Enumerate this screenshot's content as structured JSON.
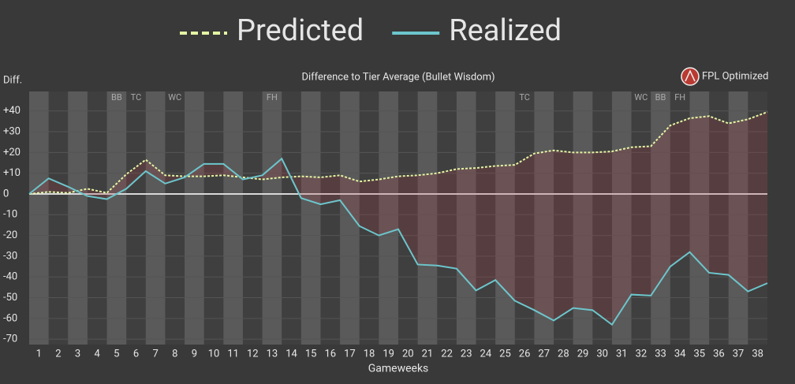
{
  "chart_data": {
    "type": "line",
    "title": "Difference to Tier Average (Bullet Wisdom)",
    "y_label": "Diff.",
    "x_label": "Gameweeks",
    "brand": "FPL Optimized",
    "x": [
      0,
      1,
      2,
      3,
      4,
      5,
      6,
      7,
      8,
      9,
      10,
      11,
      12,
      13,
      14,
      15,
      16,
      17,
      18,
      19,
      20,
      21,
      22,
      23,
      24,
      25,
      26,
      27,
      28,
      29,
      30,
      31,
      32,
      33,
      34,
      35,
      36,
      37,
      38
    ],
    "xlim": [
      0,
      38
    ],
    "xticks": [
      {
        "value": 0.5,
        "label": "1"
      },
      {
        "value": 1.5,
        "label": "2"
      },
      {
        "value": 2.5,
        "label": "3"
      },
      {
        "value": 3.5,
        "label": "4"
      },
      {
        "value": 4.5,
        "label": "5"
      },
      {
        "value": 5.5,
        "label": "6"
      },
      {
        "value": 6.5,
        "label": "7"
      },
      {
        "value": 7.5,
        "label": "8"
      },
      {
        "value": 8.5,
        "label": "9"
      },
      {
        "value": 9.5,
        "label": "10"
      },
      {
        "value": 10.5,
        "label": "11"
      },
      {
        "value": 11.5,
        "label": "12"
      },
      {
        "value": 12.5,
        "label": "13"
      },
      {
        "value": 13.5,
        "label": "14"
      },
      {
        "value": 14.5,
        "label": "15"
      },
      {
        "value": 15.5,
        "label": "16"
      },
      {
        "value": 16.5,
        "label": "17"
      },
      {
        "value": 17.5,
        "label": "18"
      },
      {
        "value": 18.5,
        "label": "19"
      },
      {
        "value": 19.5,
        "label": "20"
      },
      {
        "value": 20.5,
        "label": "21"
      },
      {
        "value": 21.5,
        "label": "22"
      },
      {
        "value": 22.5,
        "label": "23"
      },
      {
        "value": 23.5,
        "label": "24"
      },
      {
        "value": 24.5,
        "label": "25"
      },
      {
        "value": 25.5,
        "label": "26"
      },
      {
        "value": 26.5,
        "label": "27"
      },
      {
        "value": 27.5,
        "label": "28"
      },
      {
        "value": 28.5,
        "label": "29"
      },
      {
        "value": 29.5,
        "label": "30"
      },
      {
        "value": 30.5,
        "label": "31"
      },
      {
        "value": 31.5,
        "label": "32"
      },
      {
        "value": 32.5,
        "label": "33"
      },
      {
        "value": 33.5,
        "label": "34"
      },
      {
        "value": 34.5,
        "label": "35"
      },
      {
        "value": 35.5,
        "label": "36"
      },
      {
        "value": 36.5,
        "label": "37"
      },
      {
        "value": 37.5,
        "label": "38"
      }
    ],
    "ylim": [
      -72.6,
      49.4
    ],
    "yticks": [
      {
        "value": 40,
        "label": "+40"
      },
      {
        "value": 30,
        "label": "+30"
      },
      {
        "value": 20,
        "label": "+20"
      },
      {
        "value": 10,
        "label": "+10"
      },
      0,
      -10,
      -20,
      -30,
      -40,
      -50,
      -60,
      -70
    ],
    "grid": true,
    "series": [
      {
        "name": "Predicted",
        "color": "#e4f5a4",
        "dashed": true,
        "values": [
          0,
          1,
          0.5,
          2.5,
          0.5,
          9.5,
          16.5,
          9,
          8.5,
          8.5,
          9,
          8,
          7,
          8,
          8.5,
          8,
          9,
          6,
          7,
          8.5,
          9,
          10,
          12,
          12.5,
          13.5,
          14,
          19.5,
          21,
          20,
          20,
          20.5,
          22.5,
          23,
          33,
          36.5,
          37.5,
          34,
          36,
          39.5
        ]
      },
      {
        "name": "Realized",
        "color": "#6cc6cc",
        "dashed": false,
        "values": [
          0,
          7.5,
          3.5,
          -1,
          -2.5,
          2.5,
          11,
          5,
          8,
          14.5,
          14.5,
          7,
          9,
          17,
          -2,
          -5,
          -3,
          -15.5,
          -20,
          -17,
          -34,
          -34.5,
          -36,
          -46.5,
          -41.5,
          -51.5,
          -56,
          -61,
          -55,
          -56,
          -63,
          -48.5,
          -49,
          -35,
          -28,
          -38,
          -39,
          -47,
          -43
        ]
      }
    ],
    "chips": [
      {
        "gameweek": 5,
        "label": "BB"
      },
      {
        "gameweek": 6,
        "label": "TC"
      },
      {
        "gameweek": 8,
        "label": "WC"
      },
      {
        "gameweek": 13,
        "label": "FH"
      },
      {
        "gameweek": 26,
        "label": "TC"
      },
      {
        "gameweek": 32,
        "label": "WC"
      },
      {
        "gameweek": 33,
        "label": "BB"
      },
      {
        "gameweek": 34,
        "label": "FH"
      }
    ]
  }
}
